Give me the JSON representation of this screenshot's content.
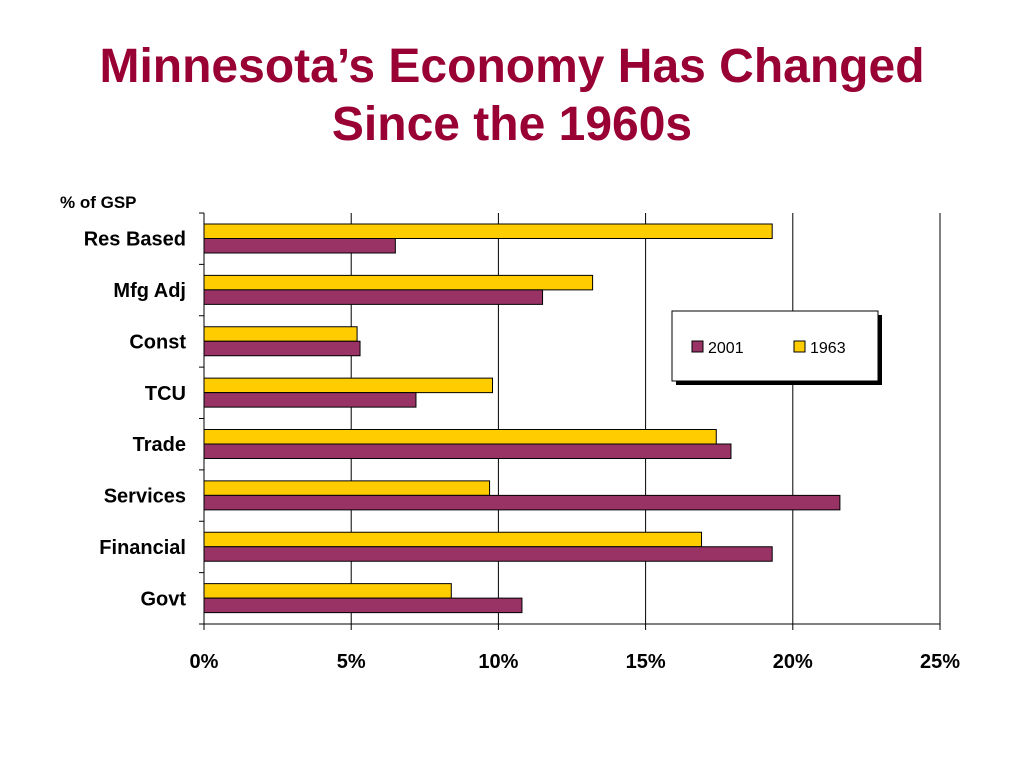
{
  "slide": {
    "title_line1": "Minnesota’s Economy Has Changed",
    "title_line2": "Since the 1960s"
  },
  "colors": {
    "title": "#990033",
    "series_2001": "#993366",
    "series_1963": "#FFCC00",
    "gridline": "#000000"
  },
  "chart_data": {
    "type": "bar",
    "orientation": "horizontal",
    "ylabel": "% of GSP",
    "categories": [
      "Res Based",
      "Mfg Adj",
      "Const",
      "TCU",
      "Trade",
      "Services",
      "Financial",
      "Govt"
    ],
    "series": [
      {
        "name": "1963",
        "color": "#FFCC00",
        "values": [
          19.3,
          13.2,
          5.2,
          9.8,
          17.4,
          9.7,
          16.9,
          8.4
        ]
      },
      {
        "name": "2001",
        "color": "#993366",
        "values": [
          6.5,
          11.5,
          5.3,
          7.2,
          17.9,
          21.6,
          19.3,
          10.8
        ]
      }
    ],
    "xlim": [
      0,
      25
    ],
    "xticks": [
      0,
      5,
      10,
      15,
      20,
      25
    ],
    "xtick_labels": [
      "0%",
      "5%",
      "10%",
      "15%",
      "20%",
      "25%"
    ],
    "grid": "vertical",
    "legend": {
      "placement": "right",
      "entries": [
        "2001",
        "1963"
      ]
    }
  }
}
